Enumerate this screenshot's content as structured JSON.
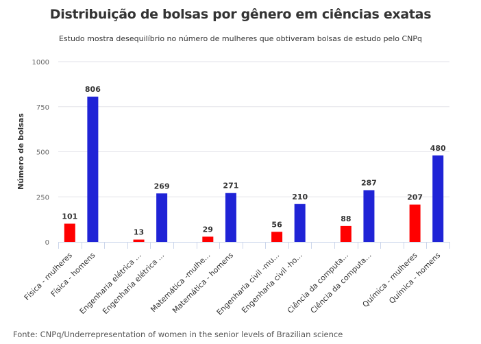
{
  "chart_data": {
    "type": "bar",
    "title": "Distribuição de bolsas por gênero em ciências exatas",
    "subtitle": "Estudo mostra desequilíbrio no número de mulheres que obtiveram bolsas de estudo pelo CNPq",
    "xlabel": "",
    "ylabel": "Número de bolsas",
    "ylim": [
      0,
      1000
    ],
    "yticks": [
      0,
      250,
      500,
      750,
      1000
    ],
    "grid": true,
    "legend": "none",
    "categories": [
      "Física - mulheres",
      "Física - homens",
      "",
      "Engenharia elétrica ...",
      "Engenharia elétrica ...",
      "",
      "Matemática -mulhe...",
      "Matemática - homens",
      "",
      "Engenharia civil -mu...",
      "Engenharia civil -ho...",
      "",
      "Ciência da computa...",
      "Ciência da computa...",
      "",
      "Química - mulheres",
      "Química - homens"
    ],
    "values": [
      101,
      806,
      null,
      13,
      269,
      null,
      29,
      271,
      null,
      56,
      210,
      null,
      88,
      287,
      null,
      207,
      480
    ],
    "series_colors": {
      "mulheres": "#ff0000",
      "homens": "#1f23d6"
    },
    "bar_groups": [
      "mulheres",
      "homens",
      null,
      "mulheres",
      "homens",
      null,
      "mulheres",
      "homens",
      null,
      "mulheres",
      "homens",
      null,
      "mulheres",
      "homens",
      null,
      "mulheres",
      "homens"
    ],
    "source": "Fonte: CNPq/Underrepresentation of women in the senior levels of Brazilian science"
  }
}
